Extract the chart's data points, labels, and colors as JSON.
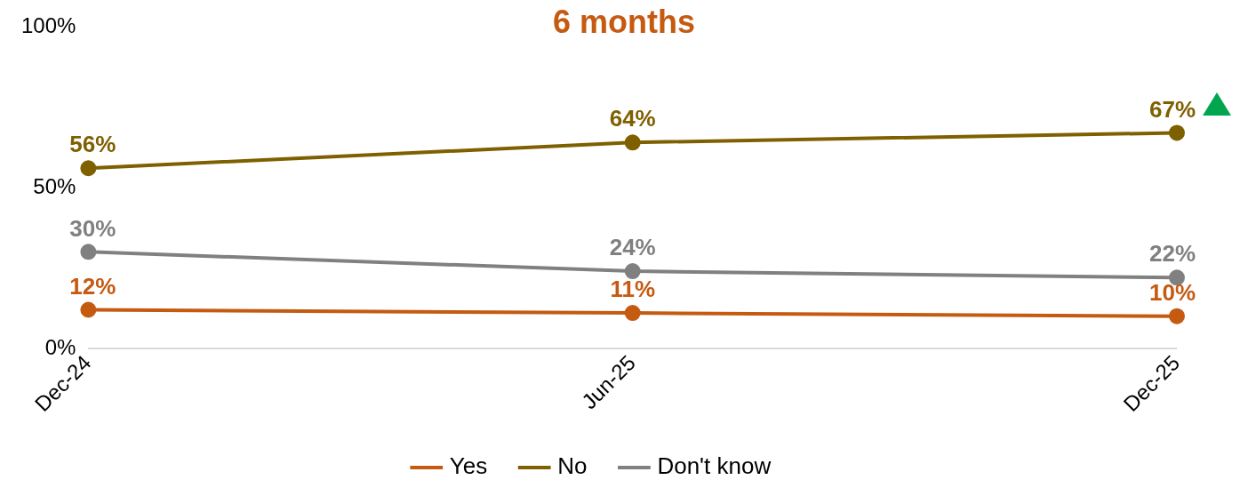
{
  "chart_data": {
    "type": "line",
    "title": "6 months",
    "categories": [
      "Dec-24",
      "Jun-25",
      "Dec-25"
    ],
    "series": [
      {
        "name": "Yes",
        "color": "#c55a11",
        "values": [
          12,
          11,
          10
        ],
        "value_labels": [
          "12%",
          "11%",
          "10%"
        ]
      },
      {
        "name": "No",
        "color": "#7f6000",
        "values": [
          56,
          64,
          67
        ],
        "value_labels": [
          "56%",
          "64%",
          "67%"
        ]
      },
      {
        "name": "Don't know",
        "color": "#808080",
        "values": [
          30,
          24,
          22
        ],
        "value_labels": [
          "30%",
          "24%",
          "22%"
        ]
      }
    ],
    "ylim": [
      0,
      100
    ],
    "yticks": [
      {
        "value": 0,
        "label": "0%"
      },
      {
        "value": 50,
        "label": "50%"
      },
      {
        "value": 100,
        "label": "100%"
      }
    ],
    "grid": false,
    "legend": "bottom",
    "marker": "circle",
    "line_style": "solid"
  }
}
